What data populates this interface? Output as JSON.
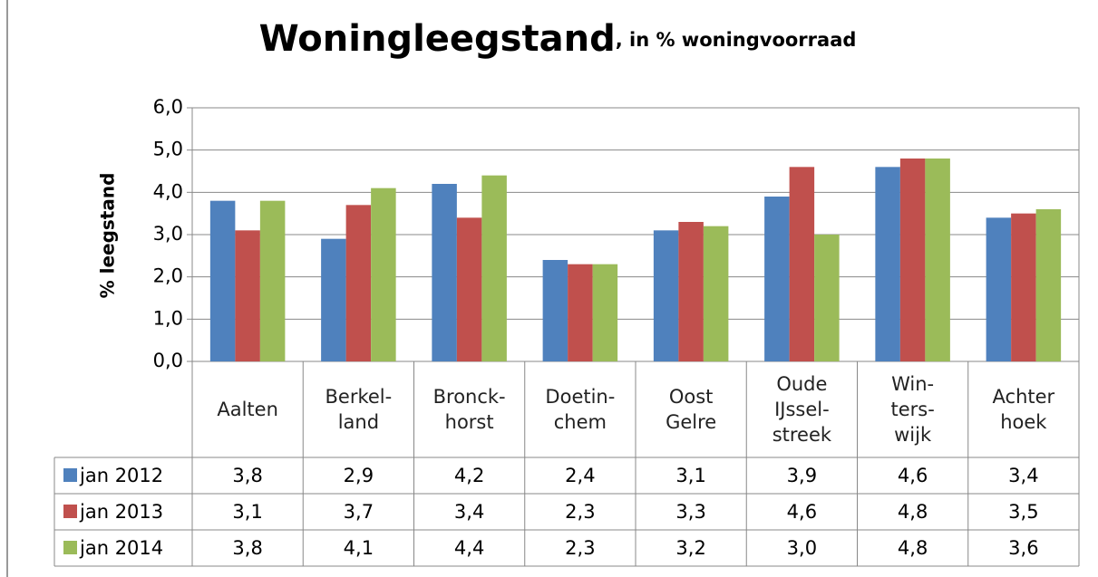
{
  "chart_data": {
    "type": "bar",
    "title": "Woningleegstand",
    "subtitle": ", in % woningvoorraad",
    "y_label": "% leegstand",
    "categories": [
      "Aalten",
      "Berkel-\nland",
      "Bronck-\nhorst",
      "Doetin-\nchem",
      "Oost\nGelre",
      "Oude\nIJssel-\nstreek",
      "Win-\nters-\nwijk",
      "Achter\nhoek"
    ],
    "series": [
      {
        "name": "jan 2012",
        "color": "#4f81bd",
        "values": [
          3.8,
          2.9,
          4.2,
          2.4,
          3.1,
          3.9,
          4.6,
          3.4
        ],
        "value_labels": [
          "3,8",
          "2,9",
          "4,2",
          "2,4",
          "3,1",
          "3,9",
          "4,6",
          "3,4"
        ]
      },
      {
        "name": "jan 2013",
        "color": "#c0504d",
        "values": [
          3.1,
          3.7,
          3.4,
          2.3,
          3.3,
          4.6,
          4.8,
          3.5
        ],
        "value_labels": [
          "3,1",
          "3,7",
          "3,4",
          "2,3",
          "3,3",
          "4,6",
          "4,8",
          "3,5"
        ]
      },
      {
        "name": "jan 2014",
        "color": "#9bbb59",
        "values": [
          3.8,
          4.1,
          4.4,
          2.3,
          3.2,
          3.0,
          4.8,
          3.6
        ],
        "value_labels": [
          "3,8",
          "4,1",
          "4,4",
          "2,3",
          "3,2",
          "3,0",
          "4,8",
          "3,6"
        ]
      }
    ],
    "ylim": [
      0,
      6
    ],
    "yticks": [
      {
        "value": 0,
        "label": "0,0"
      },
      {
        "value": 1,
        "label": "1,0"
      },
      {
        "value": 2,
        "label": "2,0"
      },
      {
        "value": 3,
        "label": "3,0"
      },
      {
        "value": 4,
        "label": "4,0"
      },
      {
        "value": 5,
        "label": "5,0"
      },
      {
        "value": 6,
        "label": "6,0"
      }
    ],
    "grid": true
  }
}
